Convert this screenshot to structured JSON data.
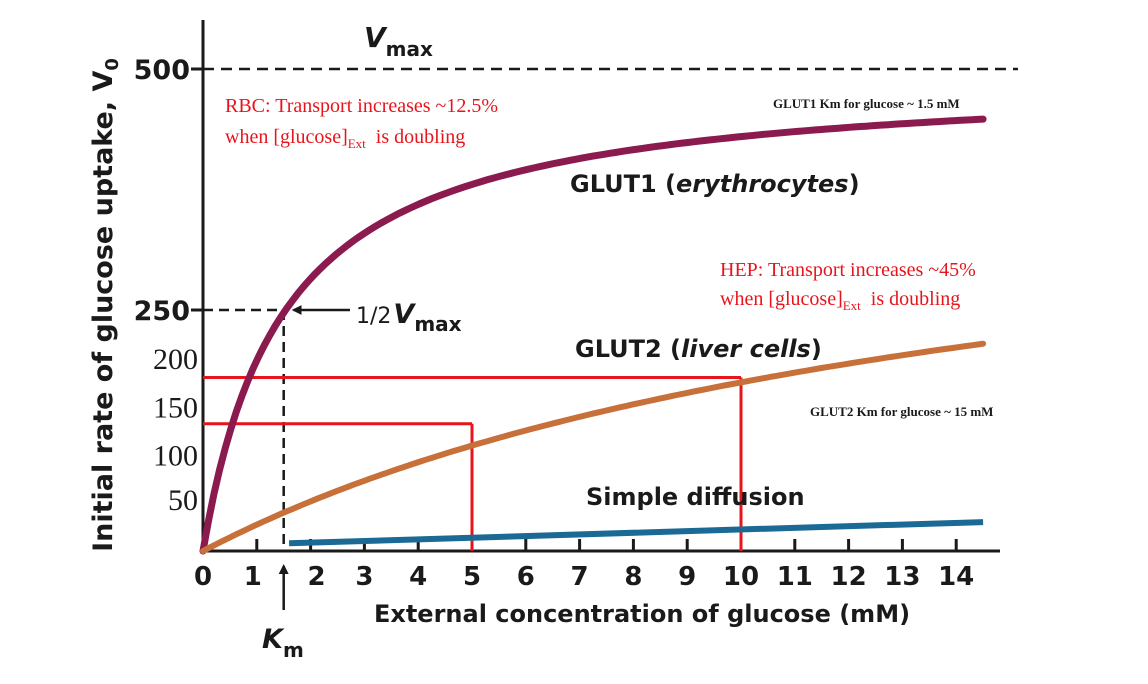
{
  "chart_data": {
    "type": "line",
    "title": "",
    "xlabel": "External concentration of glucose (mM)",
    "ylabel": "Initial rate of glucose uptake, V",
    "ylabel_sub": "0",
    "xlim": [
      0,
      14.5
    ],
    "ylim": [
      0,
      560
    ],
    "x_ticks": [
      "0",
      "1",
      "2",
      "3",
      "4",
      "5",
      "6",
      "7",
      "8",
      "9",
      "10",
      "11",
      "12",
      "13",
      "14"
    ],
    "y_ticks_bold": [
      {
        "value": 500,
        "label": "500"
      },
      {
        "value": 250,
        "label": "250"
      }
    ],
    "y_ticks_serif": [
      {
        "value": 200,
        "label": "200"
      },
      {
        "value": 150,
        "label": "150"
      },
      {
        "value": 100,
        "label": "100"
      },
      {
        "value": 50,
        "label": "50"
      }
    ],
    "vmax": {
      "value": 500,
      "label_main": "V",
      "label_sub": "max"
    },
    "half_vmax": {
      "value": 250,
      "km": 1.5,
      "label_frac": "1/2",
      "label_main": "V",
      "label_sub": "max"
    },
    "km_marker": {
      "value": 1.5,
      "label_main": "K",
      "label_sub": "m"
    },
    "series": [
      {
        "name": "GLUT1",
        "label_main": "GLUT1 (",
        "label_italic": "erythrocytes",
        "label_end": ")",
        "color": "#8b1a4e",
        "vmax": 500,
        "km": 1.5,
        "x_start": 0,
        "x_end": 14.5,
        "y_end": 448
      },
      {
        "name": "GLUT2",
        "label_main": "GLUT2 (",
        "label_italic": "liver cells",
        "label_end": ")",
        "color": "#c8703a",
        "vmax": 500,
        "km": 15,
        "x_start": 0,
        "x_end": 14.5,
        "y_end": 215
      },
      {
        "name": "Simple diffusion",
        "label_main": "Simple diffusion",
        "label_italic": "",
        "label_end": "",
        "color": "#1b6a95",
        "x_start": 1.6,
        "y_start": 8,
        "x_end": 14.5,
        "y_end": 30
      }
    ],
    "highlight_lines": {
      "color": "#e8141c",
      "points": [
        {
          "x": 5,
          "y": 132
        },
        {
          "x": 10,
          "y": 180
        }
      ]
    },
    "annotations": {
      "rbc": {
        "line1": "RBC: Transport increases ~12.5%",
        "line2_pre": "when [glucose]",
        "line2_sub": "Ext",
        "line2_post": "  is doubling",
        "color": "#e8141c"
      },
      "hep": {
        "line1": "HEP: Transport increases ~45%",
        "line2_pre": "when [glucose]",
        "line2_sub": "Ext",
        "line2_post": "  is doubling",
        "color": "#e8141c"
      },
      "glut1_km": "GLUT1  Km for glucose ~ 1.5 mM",
      "glut2_km": "GLUT2 Km for glucose ~ 15 mM"
    }
  }
}
